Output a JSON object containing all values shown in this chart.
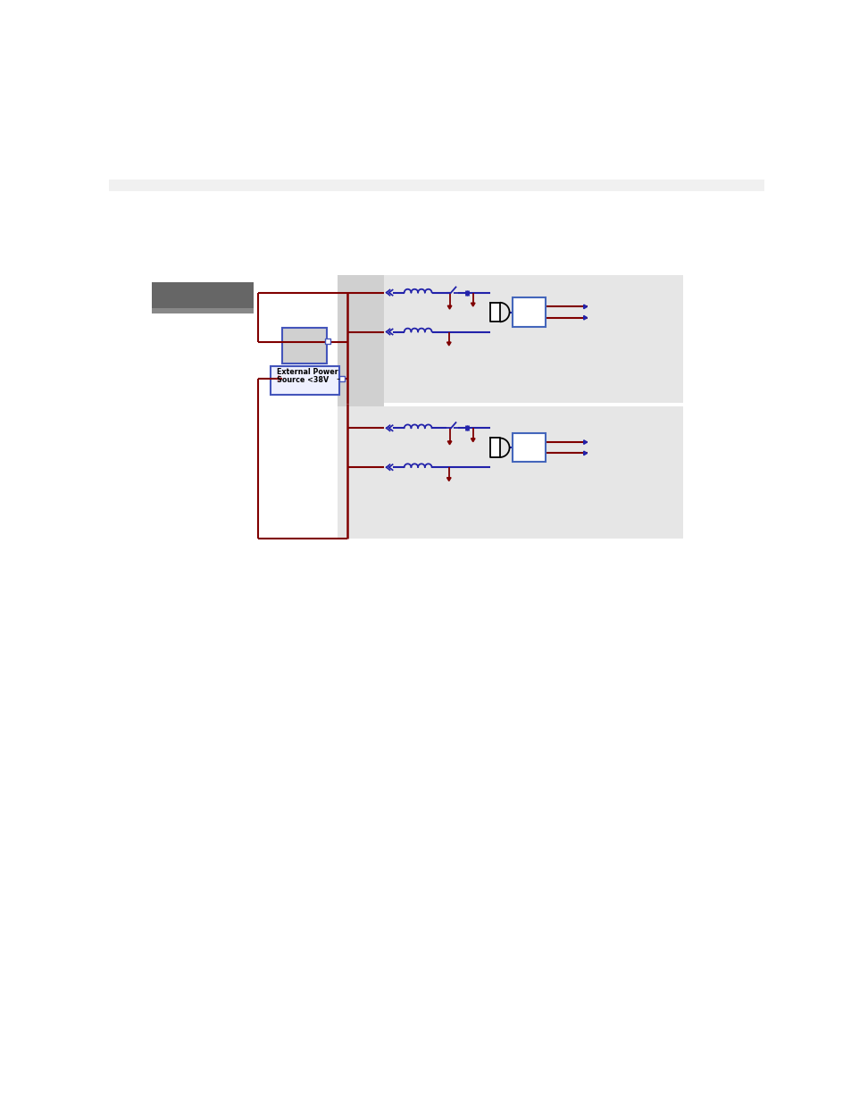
{
  "bg": "#ffffff",
  "header_color": "#f0f0f0",
  "panel_mid_color": "#d8d8d8",
  "panel_right_color": "#e8e8e8",
  "red": "#800000",
  "blue": "#2222aa",
  "dark_gray1": "#696969",
  "dark_gray2": "#888888",
  "box_blue_stroke": "#4455bb",
  "gate_fill": "#ffffff",
  "gate_stroke": "#111111",
  "output_box_stroke": "#4466bb",
  "ext_power_fill": "#eef0ff",
  "module_fill": "#d0d0d0",
  "module_stroke": "#5577aa"
}
